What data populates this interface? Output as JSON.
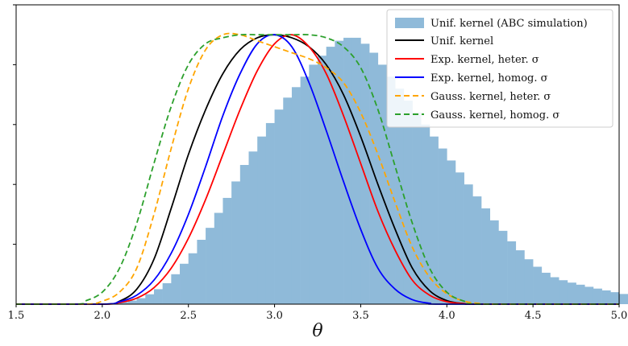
{
  "chart_data": {
    "type": "line",
    "xlabel": "θ",
    "ylabel": "",
    "xlim": [
      1.5,
      5.0
    ],
    "ylim": [
      0,
      1.0
    ],
    "x_ticks": [
      "1.5",
      "2.0",
      "2.5",
      "3.0",
      "3.5",
      "4.0",
      "4.5",
      "5.0"
    ],
    "y_tick_values": [
      0.2,
      0.4,
      0.6,
      0.8,
      1.0
    ],
    "y_tick_labels_visible": false,
    "grid": false,
    "legend_position": "top-right",
    "histogram": {
      "name": "Unif. kernel (ABC simulation)",
      "color": "#8fbad9",
      "bin_width": 0.05,
      "bin_edges_start": 2.1,
      "heights": [
        0.007,
        0.012,
        0.02,
        0.033,
        0.05,
        0.07,
        0.1,
        0.135,
        0.17,
        0.215,
        0.255,
        0.305,
        0.355,
        0.41,
        0.465,
        0.51,
        0.56,
        0.605,
        0.65,
        0.69,
        0.725,
        0.76,
        0.8,
        0.83,
        0.86,
        0.88,
        0.89,
        0.89,
        0.87,
        0.84,
        0.8,
        0.76,
        0.72,
        0.68,
        0.64,
        0.6,
        0.56,
        0.52,
        0.48,
        0.44,
        0.4,
        0.36,
        0.32,
        0.28,
        0.245,
        0.21,
        0.18,
        0.15,
        0.125,
        0.105,
        0.09,
        0.08,
        0.072,
        0.065,
        0.058,
        0.052,
        0.046,
        0.04,
        0.034,
        0.028,
        0.022,
        0.017,
        0.013,
        0.009,
        0.006,
        0.004,
        0.003,
        0.002
      ]
    },
    "series": [
      {
        "name": "Unif. kernel",
        "style": "solid",
        "color": "#000000",
        "x": [
          1.5,
          2.0,
          2.1,
          2.2,
          2.3,
          2.4,
          2.5,
          2.6,
          2.7,
          2.8,
          2.9,
          3.0,
          3.1,
          3.2,
          3.3,
          3.4,
          3.5,
          3.6,
          3.7,
          3.8,
          3.9,
          4.0,
          4.1,
          4.2,
          5.0
        ],
        "y": [
          0.0,
          0.0,
          0.01,
          0.05,
          0.15,
          0.32,
          0.5,
          0.65,
          0.77,
          0.85,
          0.89,
          0.9,
          0.89,
          0.86,
          0.8,
          0.7,
          0.56,
          0.4,
          0.25,
          0.12,
          0.045,
          0.012,
          0.002,
          0.0,
          0.0
        ]
      },
      {
        "name": "Exp. kernel, heter. σ",
        "style": "solid",
        "color": "#ff0000",
        "x": [
          1.5,
          2.0,
          2.1,
          2.2,
          2.3,
          2.4,
          2.5,
          2.6,
          2.7,
          2.8,
          2.9,
          3.0,
          3.1,
          3.2,
          3.3,
          3.4,
          3.5,
          3.6,
          3.7,
          3.8,
          3.9,
          4.0,
          4.1,
          4.2,
          5.0
        ],
        "y": [
          0.0,
          0.0,
          0.005,
          0.02,
          0.055,
          0.12,
          0.22,
          0.35,
          0.5,
          0.65,
          0.78,
          0.87,
          0.9,
          0.86,
          0.77,
          0.63,
          0.47,
          0.31,
          0.18,
          0.08,
          0.03,
          0.008,
          0.002,
          0.0,
          0.0
        ]
      },
      {
        "name": "Exp. kernel, homog. σ",
        "style": "solid",
        "color": "#0000ff",
        "x": [
          1.5,
          2.0,
          2.1,
          2.2,
          2.3,
          2.4,
          2.5,
          2.6,
          2.7,
          2.8,
          2.9,
          3.0,
          3.1,
          3.2,
          3.3,
          3.4,
          3.5,
          3.6,
          3.7,
          3.8,
          3.9,
          4.0,
          5.0
        ],
        "y": [
          0.0,
          0.0,
          0.008,
          0.03,
          0.08,
          0.17,
          0.3,
          0.46,
          0.63,
          0.77,
          0.87,
          0.9,
          0.86,
          0.74,
          0.58,
          0.41,
          0.25,
          0.12,
          0.05,
          0.015,
          0.003,
          0.0,
          0.0
        ]
      },
      {
        "name": "Gauss. kernel, heter. σ",
        "style": "dashed",
        "color": "#ffa500",
        "x": [
          1.5,
          1.9,
          2.0,
          2.1,
          2.2,
          2.3,
          2.4,
          2.5,
          2.6,
          2.7,
          2.8,
          2.9,
          3.0,
          3.1,
          3.2,
          3.3,
          3.4,
          3.5,
          3.6,
          3.7,
          3.8,
          3.9,
          4.0,
          4.1,
          4.2,
          4.3,
          5.0
        ],
        "y": [
          0.0,
          0.0,
          0.01,
          0.04,
          0.12,
          0.3,
          0.52,
          0.72,
          0.85,
          0.9,
          0.9,
          0.88,
          0.86,
          0.84,
          0.82,
          0.79,
          0.74,
          0.64,
          0.5,
          0.34,
          0.19,
          0.09,
          0.035,
          0.01,
          0.002,
          0.0,
          0.0
        ]
      },
      {
        "name": "Gauss. kernel, homog. σ",
        "style": "dashed",
        "color": "#2ca02c",
        "x": [
          1.5,
          1.85,
          1.9,
          2.0,
          2.1,
          2.2,
          2.3,
          2.4,
          2.5,
          2.6,
          2.7,
          2.8,
          2.9,
          3.0,
          3.1,
          3.2,
          3.3,
          3.4,
          3.5,
          3.6,
          3.7,
          3.8,
          3.9,
          4.0,
          4.1,
          4.2,
          5.0
        ],
        "y": [
          0.0,
          0.0,
          0.01,
          0.04,
          0.12,
          0.27,
          0.47,
          0.66,
          0.8,
          0.87,
          0.89,
          0.9,
          0.9,
          0.9,
          0.9,
          0.9,
          0.89,
          0.86,
          0.79,
          0.65,
          0.46,
          0.27,
          0.12,
          0.04,
          0.01,
          0.0,
          0.0
        ]
      }
    ]
  }
}
